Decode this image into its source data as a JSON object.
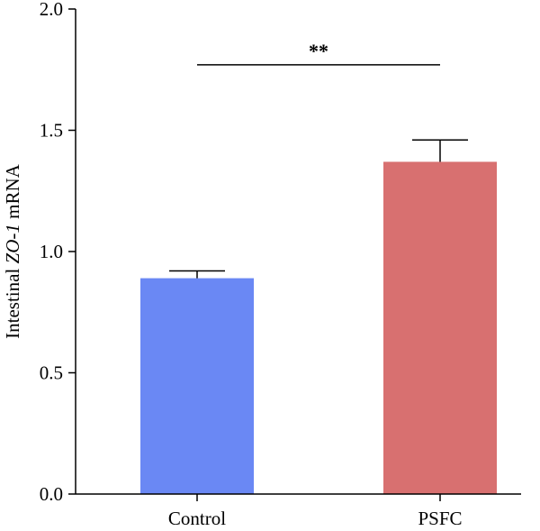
{
  "chart_data": {
    "type": "bar",
    "categories": [
      "Control",
      "PSFC"
    ],
    "values": [
      0.89,
      1.37
    ],
    "errors": [
      0.03,
      0.09
    ],
    "colors": [
      "#6a88f4",
      "#d87070"
    ],
    "ylabel": {
      "prefix": "Intestinal ",
      "gene": "ZO-1",
      "suffix": " mRNA"
    },
    "ylim": [
      0,
      2.0
    ],
    "yticks": [
      "0.0",
      "0.5",
      "1.0",
      "1.5",
      "2.0"
    ],
    "significance": {
      "label": "**",
      "between": [
        "Control",
        "PSFC"
      ],
      "level": 1.77
    },
    "grid": false,
    "legend": "none"
  }
}
